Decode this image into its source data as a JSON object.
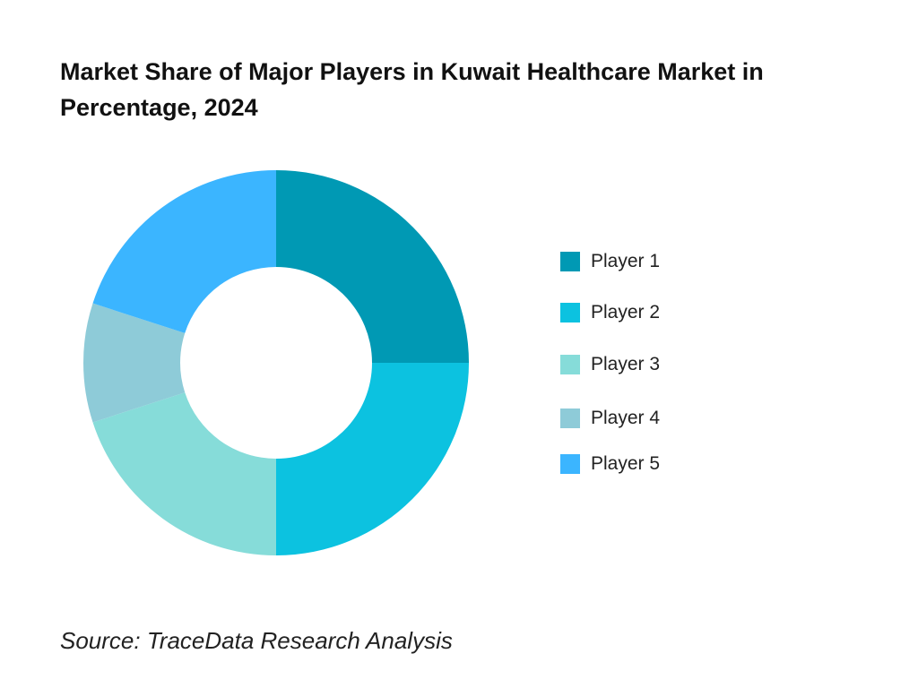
{
  "chart_data": {
    "type": "pie",
    "donut": true,
    "title": "Market Share of Major Players in Kuwait Healthcare Market in Percentage, 2024",
    "categories": [
      "Player 1",
      "Player 2",
      "Player 3",
      "Player 4",
      "Player 5"
    ],
    "values": [
      25,
      25,
      20,
      10,
      20
    ],
    "colors": [
      "#0099b4",
      "#0cc2e0",
      "#86dcd9",
      "#8ecbd8",
      "#3bb5ff"
    ],
    "legend_position": "right",
    "source": "Source: TraceData Research Analysis"
  }
}
